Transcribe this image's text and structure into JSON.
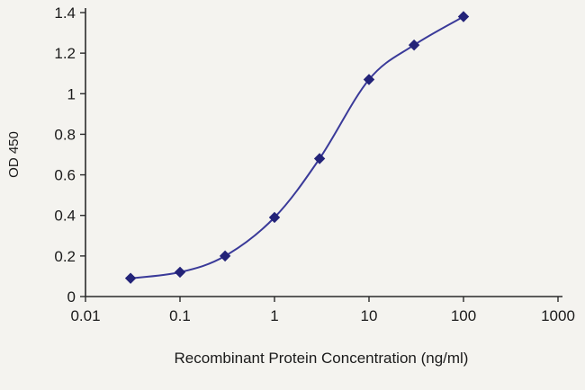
{
  "chart_data": {
    "type": "line",
    "title": "",
    "xlabel": "Recombinant Protein Concentration (ng/ml)",
    "ylabel": "OD 450",
    "x_scale": "log",
    "xlim": [
      0.01,
      1000
    ],
    "ylim": [
      0,
      1.4
    ],
    "x": [
      0.03,
      0.1,
      0.3,
      1,
      3,
      10,
      30,
      100
    ],
    "y": [
      0.09,
      0.12,
      0.2,
      0.39,
      0.68,
      1.07,
      1.24,
      1.38
    ],
    "x_ticks": [
      0.01,
      0.1,
      1,
      10,
      100,
      1000
    ],
    "x_tick_labels": [
      "0.01",
      "0.1",
      "1",
      "10",
      "100",
      "1000"
    ],
    "y_ticks": [
      0,
      0.2,
      0.4,
      0.6,
      0.8,
      1,
      1.2,
      1.4
    ],
    "y_tick_labels": [
      "0",
      "0.2",
      "0.4",
      "0.6",
      "0.8",
      "1",
      "1.2",
      "1.4"
    ],
    "grid": false,
    "legend": false,
    "marker": "diamond",
    "line_color": "#3a3a99",
    "marker_color": "#232378",
    "axis_color": "#2a2a2a",
    "text_color": "#1b1b1b",
    "background_color": "#f4f3ef"
  }
}
